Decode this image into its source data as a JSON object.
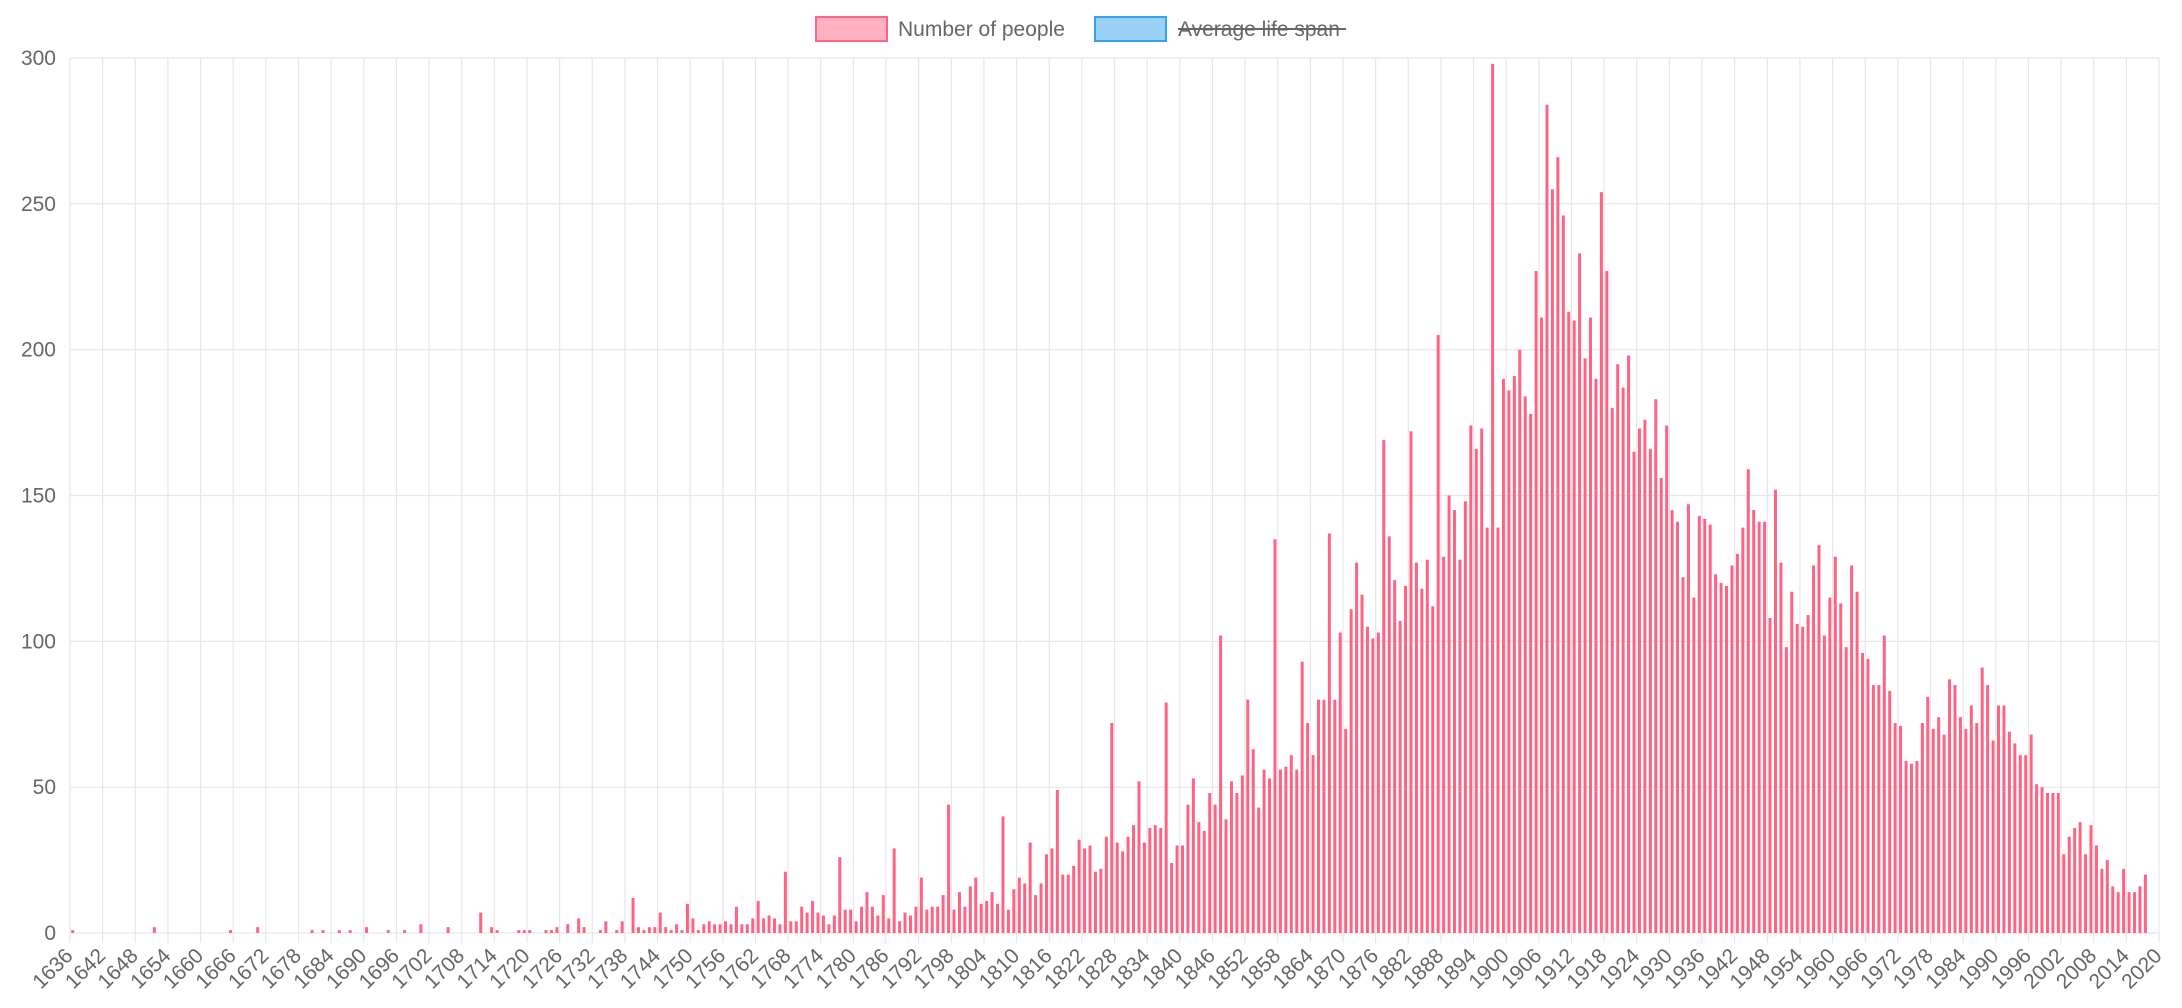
{
  "chart_data": {
    "type": "bar",
    "legend": {
      "placement": "top-center",
      "items": [
        {
          "label": "Number of people",
          "fill": "#ffb1c1",
          "stroke": "#ff6384",
          "hidden": false
        },
        {
          "label": "Average life span",
          "fill": "#9ad0f5",
          "stroke": "#36a2eb",
          "hidden": true
        }
      ]
    },
    "ylim": [
      0,
      300
    ],
    "yticks": [
      0,
      50,
      100,
      150,
      200,
      250,
      300
    ],
    "x_start": 1636,
    "x_end": 2020,
    "x_tick_step": 6,
    "grid": true,
    "series": [
      {
        "name": "Number of people",
        "color": "#ff6384",
        "points": [
          [
            1636,
            1
          ],
          [
            1651,
            2
          ],
          [
            1665,
            1
          ],
          [
            1670,
            2
          ],
          [
            1680,
            1
          ],
          [
            1682,
            1
          ],
          [
            1685,
            1
          ],
          [
            1687,
            1
          ],
          [
            1690,
            2
          ],
          [
            1694,
            1
          ],
          [
            1697,
            1
          ],
          [
            1700,
            3
          ],
          [
            1705,
            2
          ],
          [
            1711,
            7
          ],
          [
            1713,
            2
          ],
          [
            1714,
            1
          ],
          [
            1718,
            1
          ],
          [
            1719,
            1
          ],
          [
            1720,
            1
          ],
          [
            1723,
            1
          ],
          [
            1724,
            1
          ],
          [
            1725,
            2
          ],
          [
            1727,
            3
          ],
          [
            1729,
            5
          ],
          [
            1730,
            2
          ],
          [
            1733,
            1
          ],
          [
            1734,
            4
          ],
          [
            1736,
            1
          ],
          [
            1737,
            4
          ],
          [
            1739,
            12
          ],
          [
            1740,
            2
          ],
          [
            1741,
            1
          ],
          [
            1742,
            2
          ],
          [
            1743,
            2
          ],
          [
            1744,
            7
          ],
          [
            1745,
            2
          ],
          [
            1746,
            1
          ],
          [
            1747,
            3
          ],
          [
            1748,
            1
          ],
          [
            1749,
            10
          ],
          [
            1750,
            5
          ],
          [
            1751,
            1
          ],
          [
            1752,
            3
          ],
          [
            1753,
            4
          ],
          [
            1754,
            3
          ],
          [
            1755,
            3
          ],
          [
            1756,
            4
          ],
          [
            1757,
            3
          ],
          [
            1758,
            9
          ],
          [
            1759,
            3
          ],
          [
            1760,
            3
          ],
          [
            1761,
            5
          ],
          [
            1762,
            11
          ],
          [
            1763,
            5
          ],
          [
            1764,
            6
          ],
          [
            1765,
            5
          ],
          [
            1766,
            3
          ],
          [
            1767,
            21
          ],
          [
            1768,
            4
          ],
          [
            1769,
            4
          ],
          [
            1770,
            9
          ],
          [
            1771,
            7
          ],
          [
            1772,
            11
          ],
          [
            1773,
            7
          ],
          [
            1774,
            6
          ],
          [
            1775,
            3
          ],
          [
            1776,
            6
          ],
          [
            1777,
            26
          ],
          [
            1778,
            8
          ],
          [
            1779,
            8
          ],
          [
            1780,
            4
          ],
          [
            1781,
            9
          ],
          [
            1782,
            14
          ],
          [
            1783,
            9
          ],
          [
            1784,
            6
          ],
          [
            1785,
            13
          ],
          [
            1786,
            5
          ],
          [
            1787,
            29
          ],
          [
            1788,
            4
          ],
          [
            1789,
            7
          ],
          [
            1790,
            6
          ],
          [
            1791,
            9
          ],
          [
            1792,
            19
          ],
          [
            1793,
            8
          ],
          [
            1794,
            9
          ],
          [
            1795,
            9
          ],
          [
            1796,
            13
          ],
          [
            1797,
            44
          ],
          [
            1798,
            8
          ],
          [
            1799,
            14
          ],
          [
            1800,
            9
          ],
          [
            1801,
            16
          ],
          [
            1802,
            19
          ],
          [
            1803,
            10
          ],
          [
            1804,
            11
          ],
          [
            1805,
            14
          ],
          [
            1806,
            10
          ],
          [
            1807,
            40
          ],
          [
            1808,
            8
          ],
          [
            1809,
            15
          ],
          [
            1810,
            19
          ],
          [
            1811,
            17
          ],
          [
            1812,
            31
          ],
          [
            1813,
            13
          ],
          [
            1814,
            17
          ],
          [
            1815,
            27
          ],
          [
            1816,
            29
          ],
          [
            1817,
            49
          ],
          [
            1818,
            20
          ],
          [
            1819,
            20
          ],
          [
            1820,
            23
          ],
          [
            1821,
            32
          ],
          [
            1822,
            29
          ],
          [
            1823,
            30
          ],
          [
            1824,
            21
          ],
          [
            1825,
            22
          ],
          [
            1826,
            33
          ],
          [
            1827,
            72
          ],
          [
            1828,
            31
          ],
          [
            1829,
            28
          ],
          [
            1830,
            33
          ],
          [
            1831,
            37
          ],
          [
            1832,
            52
          ],
          [
            1833,
            31
          ],
          [
            1834,
            36
          ],
          [
            1835,
            37
          ],
          [
            1836,
            36
          ],
          [
            1837,
            79
          ],
          [
            1838,
            24
          ],
          [
            1839,
            30
          ],
          [
            1840,
            30
          ],
          [
            1841,
            44
          ],
          [
            1842,
            53
          ],
          [
            1843,
            38
          ],
          [
            1844,
            35
          ],
          [
            1845,
            48
          ],
          [
            1846,
            44
          ],
          [
            1847,
            102
          ],
          [
            1848,
            39
          ],
          [
            1849,
            52
          ],
          [
            1850,
            48
          ],
          [
            1851,
            54
          ],
          [
            1852,
            80
          ],
          [
            1853,
            63
          ],
          [
            1854,
            43
          ],
          [
            1855,
            56
          ],
          [
            1856,
            53
          ],
          [
            1857,
            135
          ],
          [
            1858,
            56
          ],
          [
            1859,
            57
          ],
          [
            1860,
            61
          ],
          [
            1861,
            56
          ],
          [
            1862,
            93
          ],
          [
            1863,
            72
          ],
          [
            1864,
            61
          ],
          [
            1865,
            80
          ],
          [
            1866,
            80
          ],
          [
            1867,
            137
          ],
          [
            1868,
            80
          ],
          [
            1869,
            103
          ],
          [
            1870,
            70
          ],
          [
            1871,
            111
          ],
          [
            1872,
            127
          ],
          [
            1873,
            116
          ],
          [
            1874,
            105
          ],
          [
            1875,
            101
          ],
          [
            1876,
            103
          ],
          [
            1877,
            169
          ],
          [
            1878,
            136
          ],
          [
            1879,
            121
          ],
          [
            1880,
            107
          ],
          [
            1881,
            119
          ],
          [
            1882,
            172
          ],
          [
            1883,
            127
          ],
          [
            1884,
            118
          ],
          [
            1885,
            128
          ],
          [
            1886,
            112
          ],
          [
            1887,
            205
          ],
          [
            1888,
            129
          ],
          [
            1889,
            150
          ],
          [
            1890,
            145
          ],
          [
            1891,
            128
          ],
          [
            1892,
            148
          ],
          [
            1893,
            174
          ],
          [
            1894,
            166
          ],
          [
            1895,
            173
          ],
          [
            1896,
            139
          ],
          [
            1897,
            298
          ],
          [
            1898,
            139
          ],
          [
            1899,
            190
          ],
          [
            1900,
            186
          ],
          [
            1901,
            191
          ],
          [
            1902,
            200
          ],
          [
            1903,
            184
          ],
          [
            1904,
            178
          ],
          [
            1905,
            227
          ],
          [
            1906,
            211
          ],
          [
            1907,
            284
          ],
          [
            1908,
            255
          ],
          [
            1909,
            266
          ],
          [
            1910,
            246
          ],
          [
            1911,
            213
          ],
          [
            1912,
            210
          ],
          [
            1913,
            233
          ],
          [
            1914,
            197
          ],
          [
            1915,
            211
          ],
          [
            1916,
            190
          ],
          [
            1917,
            254
          ],
          [
            1918,
            227
          ],
          [
            1919,
            180
          ],
          [
            1920,
            195
          ],
          [
            1921,
            187
          ],
          [
            1922,
            198
          ],
          [
            1923,
            165
          ],
          [
            1924,
            173
          ],
          [
            1925,
            176
          ],
          [
            1926,
            166
          ],
          [
            1927,
            183
          ],
          [
            1928,
            156
          ],
          [
            1929,
            174
          ],
          [
            1930,
            145
          ],
          [
            1931,
            141
          ],
          [
            1932,
            122
          ],
          [
            1933,
            147
          ],
          [
            1934,
            115
          ],
          [
            1935,
            143
          ],
          [
            1936,
            142
          ],
          [
            1937,
            140
          ],
          [
            1938,
            123
          ],
          [
            1939,
            120
          ],
          [
            1940,
            119
          ],
          [
            1941,
            126
          ],
          [
            1942,
            130
          ],
          [
            1943,
            139
          ],
          [
            1944,
            159
          ],
          [
            1945,
            145
          ],
          [
            1946,
            141
          ],
          [
            1947,
            141
          ],
          [
            1948,
            108
          ],
          [
            1949,
            152
          ],
          [
            1950,
            127
          ],
          [
            1951,
            98
          ],
          [
            1952,
            117
          ],
          [
            1953,
            106
          ],
          [
            1954,
            105
          ],
          [
            1955,
            109
          ],
          [
            1956,
            126
          ],
          [
            1957,
            133
          ],
          [
            1958,
            102
          ],
          [
            1959,
            115
          ],
          [
            1960,
            129
          ],
          [
            1961,
            113
          ],
          [
            1962,
            98
          ],
          [
            1963,
            126
          ],
          [
            1964,
            117
          ],
          [
            1965,
            96
          ],
          [
            1966,
            94
          ],
          [
            1967,
            85
          ],
          [
            1968,
            85
          ],
          [
            1969,
            102
          ],
          [
            1970,
            83
          ],
          [
            1971,
            72
          ],
          [
            1972,
            71
          ],
          [
            1973,
            59
          ],
          [
            1974,
            58
          ],
          [
            1975,
            59
          ],
          [
            1976,
            72
          ],
          [
            1977,
            81
          ],
          [
            1978,
            70
          ],
          [
            1979,
            74
          ],
          [
            1980,
            68
          ],
          [
            1981,
            87
          ],
          [
            1982,
            85
          ],
          [
            1983,
            74
          ],
          [
            1984,
            70
          ],
          [
            1985,
            78
          ],
          [
            1986,
            72
          ],
          [
            1987,
            91
          ],
          [
            1988,
            85
          ],
          [
            1989,
            66
          ],
          [
            1990,
            78
          ],
          [
            1991,
            78
          ],
          [
            1992,
            69
          ],
          [
            1993,
            65
          ],
          [
            1994,
            61
          ],
          [
            1995,
            61
          ],
          [
            1996,
            68
          ],
          [
            1997,
            51
          ],
          [
            1998,
            50
          ],
          [
            1999,
            48
          ],
          [
            2000,
            48
          ],
          [
            2001,
            48
          ],
          [
            2002,
            27
          ],
          [
            2003,
            33
          ],
          [
            2004,
            36
          ],
          [
            2005,
            38
          ],
          [
            2006,
            27
          ],
          [
            2007,
            37
          ],
          [
            2008,
            30
          ],
          [
            2009,
            22
          ],
          [
            2010,
            25
          ],
          [
            2011,
            16
          ],
          [
            2012,
            14
          ],
          [
            2013,
            22
          ],
          [
            2014,
            14
          ],
          [
            2015,
            14
          ],
          [
            2016,
            16
          ],
          [
            2017,
            20
          ]
        ]
      }
    ]
  }
}
